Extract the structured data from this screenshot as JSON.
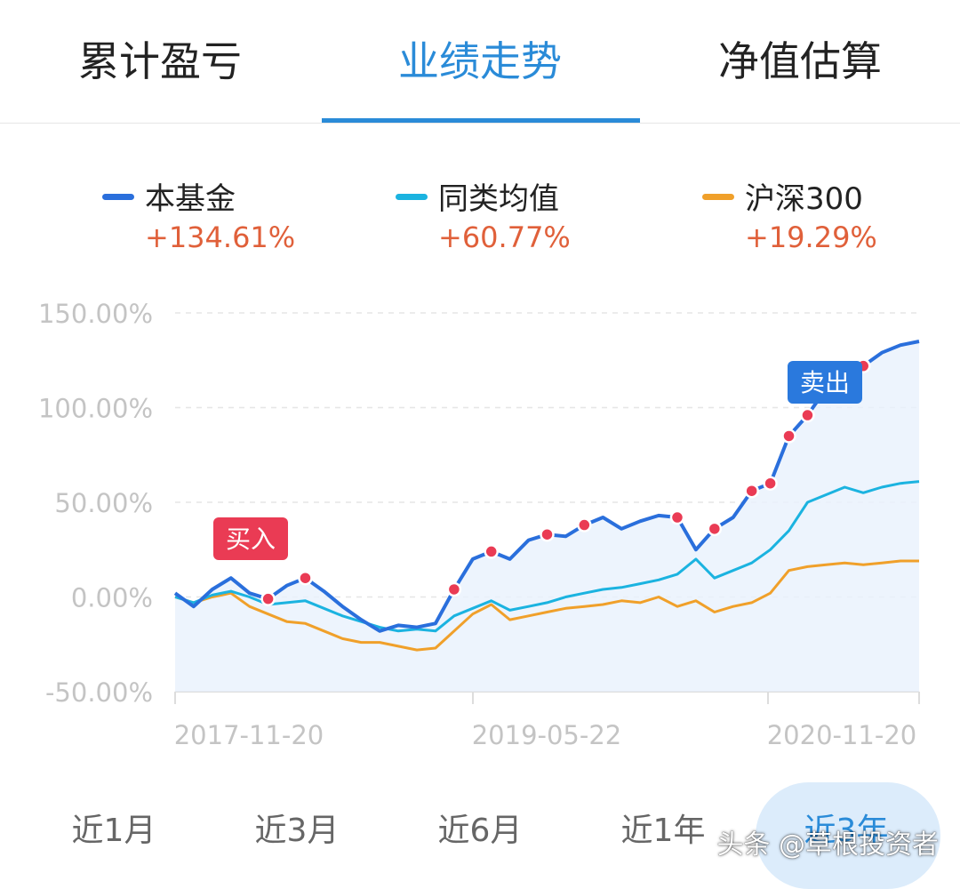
{
  "tabs": [
    {
      "label": "累计盈亏"
    },
    {
      "label": "业绩走势",
      "active": true
    },
    {
      "label": "净值估算"
    }
  ],
  "legend": [
    {
      "name": "本基金",
      "value": "+134.61%",
      "color": "#2a6fdc"
    },
    {
      "name": "同类均值",
      "value": "+60.77%",
      "color": "#1bb3e0"
    },
    {
      "name": "沪深300",
      "value": "+19.29%",
      "color": "#f0a02a"
    }
  ],
  "chart_data": {
    "type": "line",
    "y_ticks": [
      "150.00%",
      "100.00%",
      "50.00%",
      "0.00%",
      "-50.00%"
    ],
    "ylim": [
      -50,
      150
    ],
    "x_ticks": [
      "2017-11-20",
      "2019-05-22",
      "2020-11-20"
    ],
    "markers": {
      "buy_label": "买入",
      "sell_label": "卖出"
    },
    "series": [
      {
        "name": "本基金",
        "color": "#2a6fdc",
        "values": [
          2,
          -5,
          4,
          10,
          2,
          -1,
          6,
          10,
          3,
          -5,
          -12,
          -18,
          -15,
          -16,
          -14,
          4,
          20,
          24,
          20,
          30,
          33,
          32,
          38,
          42,
          36,
          40,
          43,
          42,
          25,
          36,
          42,
          56,
          60,
          85,
          96,
          110,
          118,
          122,
          129,
          133,
          135
        ]
      },
      {
        "name": "同类均值",
        "color": "#1bb3e0",
        "values": [
          0,
          -3,
          1,
          3,
          0,
          -4,
          -3,
          -2,
          -6,
          -10,
          -13,
          -16,
          -18,
          -17,
          -18,
          -10,
          -6,
          -2,
          -7,
          -5,
          -3,
          0,
          2,
          4,
          5,
          7,
          9,
          12,
          20,
          10,
          14,
          18,
          25,
          35,
          50,
          54,
          58,
          55,
          58,
          60,
          61
        ]
      },
      {
        "name": "沪深300",
        "color": "#f0a02a",
        "values": [
          0,
          -3,
          0,
          2,
          -5,
          -9,
          -13,
          -14,
          -18,
          -22,
          -24,
          -24,
          -26,
          -28,
          -27,
          -18,
          -9,
          -4,
          -12,
          -10,
          -8,
          -6,
          -5,
          -4,
          -2,
          -3,
          0,
          -5,
          -2,
          -8,
          -5,
          -3,
          2,
          14,
          16,
          17,
          18,
          17,
          18,
          19,
          19
        ]
      }
    ]
  },
  "periods": [
    {
      "label": "近1月"
    },
    {
      "label": "近3月"
    },
    {
      "label": "近6月"
    },
    {
      "label": "近1年"
    },
    {
      "label": "近3年",
      "active": true
    }
  ],
  "watermark": "头条 @草根投资者"
}
